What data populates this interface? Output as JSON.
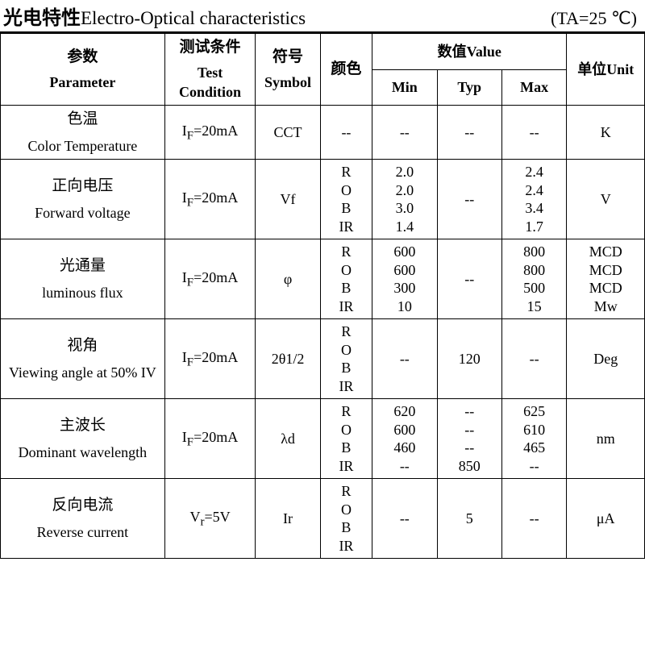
{
  "title": {
    "cn": "光电特性",
    "en": "Electro-Optical characteristics",
    "condition": "(TA=25 ℃)"
  },
  "headers": {
    "parameter_cn": "参数",
    "parameter_en": "Parameter",
    "test_cn": "测试条件",
    "test_en": "Test Condition",
    "symbol_cn": "符号",
    "symbol_en": "Symbol",
    "color_cn": "颜色",
    "value_cn": "数值",
    "value_en": "Value",
    "min": "Min",
    "typ": "Typ",
    "max": "Max",
    "unit_cn": "单位",
    "unit_en": "Unit"
  },
  "rows": [
    {
      "param_cn": "色温",
      "param_en": "Color Temperature",
      "cond_html": "I<sub>F</sub>=20mA",
      "symbol": "CCT",
      "color": [
        "--"
      ],
      "min": [
        "--"
      ],
      "typ": [
        "--"
      ],
      "max": [
        "--"
      ],
      "unit": [
        "K"
      ]
    },
    {
      "param_cn": "正向电压",
      "param_en": "Forward voltage",
      "cond_html": "I<sub>F</sub>=20mA",
      "symbol": "Vf",
      "color": [
        "R",
        "O",
        "B",
        "IR"
      ],
      "min": [
        "2.0",
        "2.0",
        "3.0",
        "1.4"
      ],
      "typ": [
        "--"
      ],
      "max": [
        "2.4",
        "2.4",
        "3.4",
        "1.7"
      ],
      "unit": [
        "V"
      ]
    },
    {
      "param_cn": "光通量",
      "param_en": "luminous flux",
      "cond_html": "I<sub>F</sub>=20mA",
      "symbol": "φ",
      "color": [
        "R",
        "O",
        "B",
        "IR"
      ],
      "min": [
        "600",
        "600",
        "300",
        "10"
      ],
      "typ": [
        "--"
      ],
      "max": [
        "800",
        "800",
        "500",
        "15"
      ],
      "unit": [
        "MCD",
        "MCD",
        "MCD",
        "Mw"
      ]
    },
    {
      "param_cn": "视角",
      "param_en": "Viewing angle at 50% IV",
      "cond_html": "I<sub>F</sub>=20mA",
      "symbol": "2θ1/2",
      "color": [
        "R",
        "O",
        "B",
        "IR"
      ],
      "min": [
        "--"
      ],
      "typ": [
        "120"
      ],
      "max": [
        "--"
      ],
      "unit": [
        "Deg"
      ]
    },
    {
      "param_cn": "主波长",
      "param_en": "Dominant wavelength",
      "cond_html": "I<sub>F</sub>=20mA",
      "symbol": "λd",
      "color": [
        "R",
        "O",
        "B",
        "IR"
      ],
      "min": [
        "620",
        "600",
        "460",
        "--"
      ],
      "typ": [
        "--",
        "--",
        "--",
        "850"
      ],
      "max": [
        "625",
        "610",
        "465",
        "--"
      ],
      "unit": [
        "nm"
      ]
    },
    {
      "param_cn": "反向电流",
      "param_en": "Reverse current",
      "cond_html": "V<sub>r</sub>=5V",
      "symbol": "Ir",
      "color": [
        "R",
        "O",
        "B",
        "IR"
      ],
      "min": [
        "--"
      ],
      "typ": [
        "5"
      ],
      "max": [
        "--"
      ],
      "unit": [
        "μA"
      ]
    }
  ]
}
